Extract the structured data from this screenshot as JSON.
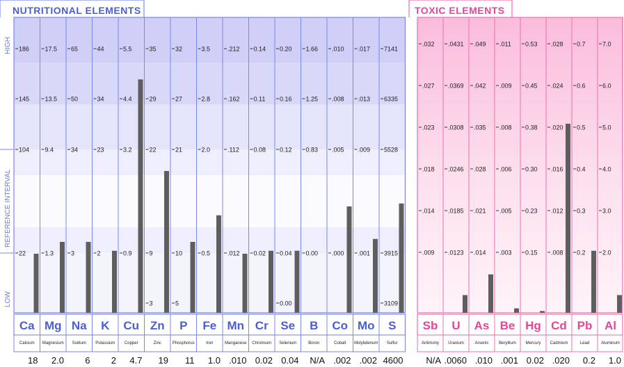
{
  "nutritional": {
    "title": "NUTRITIONAL ELEMENTS",
    "side_labels": {
      "high": "HIGH",
      "ref": "REFERENCE INTERVAL",
      "low": "LOW"
    },
    "elements": [
      {
        "symbol": "Ca",
        "name": "Calcium",
        "value": "18",
        "scale": [
          "186",
          "145",
          "104",
          "",
          "22",
          ""
        ],
        "level": 0.2
      },
      {
        "symbol": "Mg",
        "name": "Magnesium",
        "value": "2.0",
        "scale": [
          "17.5",
          "13.5",
          "9.4",
          "",
          "1.3",
          ""
        ],
        "level": 0.24
      },
      {
        "symbol": "Na",
        "name": "Sodium",
        "value": "6",
        "scale": [
          "65",
          "50",
          "34",
          "",
          "3",
          ""
        ],
        "level": 0.24
      },
      {
        "symbol": "K",
        "name": "Potassium",
        "value": "2",
        "scale": [
          "44",
          "34",
          "23",
          "",
          "2",
          ""
        ],
        "level": 0.21
      },
      {
        "symbol": "Cu",
        "name": "Copper",
        "value": "4.7",
        "scale": [
          "5.5",
          "4.4",
          "3.2",
          "",
          "0.9",
          ""
        ],
        "level": 0.79
      },
      {
        "symbol": "Zn",
        "name": "Zinc",
        "value": "19",
        "scale": [
          "35",
          "29",
          "22",
          "",
          "9",
          "3"
        ],
        "level": 0.48
      },
      {
        "symbol": "P",
        "name": "Phosphorus",
        "value": "11",
        "scale": [
          "32",
          "27",
          "21",
          "",
          "10",
          "5"
        ],
        "level": 0.24
      },
      {
        "symbol": "Fe",
        "name": "Iron",
        "value": "1.0",
        "scale": [
          "3.5",
          "2.8",
          "2.0",
          "",
          "0.5",
          ""
        ],
        "level": 0.33
      },
      {
        "symbol": "Mn",
        "name": "Manganese",
        "value": ".010",
        "scale": [
          ".212",
          ".162",
          ".112",
          "",
          ".012",
          ""
        ],
        "level": 0.2
      },
      {
        "symbol": "Cr",
        "name": "Chromium",
        "value": "0.02",
        "scale": [
          "0.14",
          "0.11",
          "0.08",
          "",
          "0.02",
          ""
        ],
        "level": 0.21
      },
      {
        "symbol": "Se",
        "name": "Selenium",
        "value": "0.04",
        "scale": [
          "0.20",
          "0.16",
          "0.12",
          "",
          "0.04",
          "0.00"
        ],
        "level": 0.21
      },
      {
        "symbol": "B",
        "name": "Boron",
        "value": "N/A",
        "scale": [
          "1.66",
          "1.25",
          "0.83",
          "",
          "0.00",
          ""
        ],
        "level": 0
      },
      {
        "symbol": "Co",
        "name": "Cobalt",
        "value": ".002",
        "scale": [
          ".010",
          ".008",
          ".005",
          "",
          ".000",
          ""
        ],
        "level": 0.36
      },
      {
        "symbol": "Mo",
        "name": "Molybdenum",
        "value": ".002",
        "scale": [
          ".017",
          ".013",
          ".009",
          "",
          ".001",
          ""
        ],
        "level": 0.25
      },
      {
        "symbol": "S",
        "name": "Sulfur",
        "value": "4600",
        "scale": [
          "7141",
          "6335",
          "5528",
          "",
          "3915",
          "3109"
        ],
        "level": 0.37
      }
    ]
  },
  "toxic": {
    "title": "TOXIC ELEMENTS",
    "elements": [
      {
        "symbol": "Sb",
        "name": "Antimony",
        "value": "N/A",
        "scale": [
          ".032",
          ".027",
          ".023",
          ".018",
          ".014",
          ".009"
        ],
        "level": 0
      },
      {
        "symbol": "U",
        "name": "Uranium",
        "value": ".0060",
        "scale": [
          ".0431",
          ".0369",
          ".0308",
          ".0246",
          ".0185",
          ".0123"
        ],
        "level": 0.06
      },
      {
        "symbol": "As",
        "name": "Arsenic",
        "value": ".010",
        "scale": [
          ".049",
          ".042",
          ".035",
          ".028",
          ".021",
          ".014"
        ],
        "level": 0.13
      },
      {
        "symbol": "Be",
        "name": "Beryllium",
        "value": ".001",
        "scale": [
          ".011",
          ".009",
          ".008",
          ".006",
          ".005",
          ".003"
        ],
        "level": 0.015
      },
      {
        "symbol": "Hg",
        "name": "Mercury",
        "value": "0.02",
        "scale": [
          "0.53",
          "0.45",
          "0.38",
          "0.30",
          "0.23",
          "0.15"
        ],
        "level": 0.006
      },
      {
        "symbol": "Cd",
        "name": "Cadmium",
        "value": ".020",
        "scale": [
          ".028",
          ".024",
          ".020",
          ".016",
          ".012",
          ".008"
        ],
        "level": 0.64
      },
      {
        "symbol": "Pb",
        "name": "Lead",
        "value": "0.2",
        "scale": [
          "0.7",
          "0.6",
          "0.5",
          "0.4",
          "0.3",
          "0.2"
        ],
        "level": 0.21
      },
      {
        "symbol": "Al",
        "name": "Aluminum",
        "value": "1.0",
        "scale": [
          "7.0",
          "6.0",
          "5.0",
          "4.0",
          "3.0",
          "2.0"
        ],
        "level": 0.06
      }
    ]
  },
  "colors": {
    "nut_border": "#7b87e8",
    "nut_text": "#4a5ed6",
    "nut_band_high": "#cfcff8",
    "nut_band_mid": "#e4e4fb",
    "nut_band_low": "#f4f4fd",
    "tox_border": "#ef6fb1",
    "tox_text": "#e8449a",
    "tox_band_top": "#fbbcdc",
    "tox_band_bottom": "#fff3f9",
    "bar": "#5e5e5e"
  }
}
